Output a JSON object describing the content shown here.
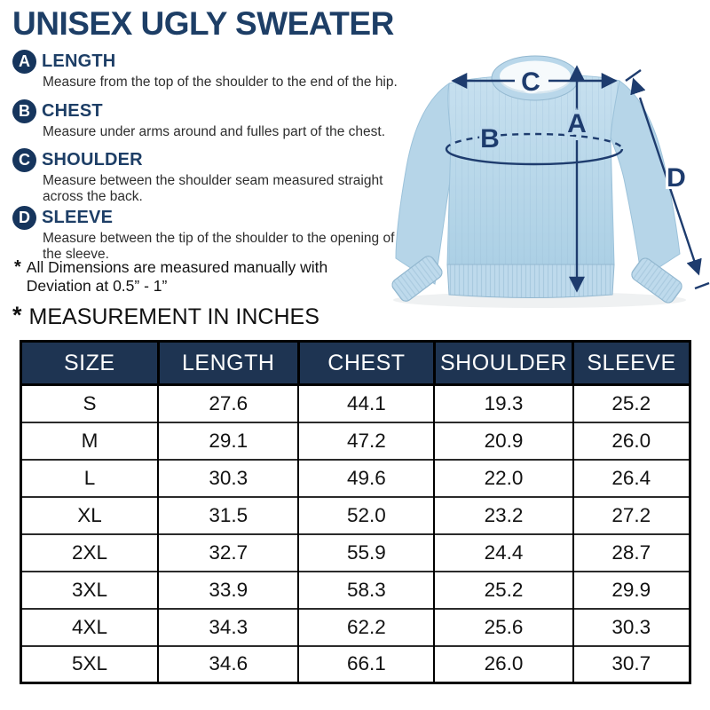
{
  "title": "UNISEX UGLY SWEATER",
  "sections": [
    {
      "letter": "A",
      "label": "LENGTH",
      "description": "Measure from the top of the shoulder to the end of the hip."
    },
    {
      "letter": "B",
      "label": "CHEST",
      "description": "Measure under arms around and fulles part of the chest."
    },
    {
      "letter": "C",
      "label": "SHOULDER",
      "description": "Measure between the shoulder seam measured straight across the back."
    },
    {
      "letter": "D",
      "label": "SLEEVE",
      "description": "Measure between the tip of the shoulder to the opening of the sleeve."
    }
  ],
  "note": {
    "marker": "*",
    "line1": "All Dimensions are measured manually with",
    "line2": "Deviation at 0.5” - 1”"
  },
  "table_heading": {
    "marker": "*",
    "text": "MEASUREMENT IN INCHES"
  },
  "diagram": {
    "labels": {
      "a": "A",
      "b": "B",
      "c": "C",
      "d": "D"
    }
  },
  "table": {
    "headers": [
      "SIZE",
      "LENGTH",
      "CHEST",
      "SHOULDER",
      "SLEEVE"
    ],
    "rows": [
      [
        "S",
        "27.6",
        "44.1",
        "19.3",
        "25.2"
      ],
      [
        "M",
        "29.1",
        "47.2",
        "20.9",
        "26.0"
      ],
      [
        "L",
        "30.3",
        "49.6",
        "22.0",
        "26.4"
      ],
      [
        "XL",
        "31.5",
        "52.0",
        "23.2",
        "27.2"
      ],
      [
        "2XL",
        "32.7",
        "55.9",
        "24.4",
        "28.7"
      ],
      [
        "3XL",
        "33.9",
        "58.3",
        "25.2",
        "29.9"
      ],
      [
        "4XL",
        "34.3",
        "62.2",
        "25.6",
        "30.3"
      ],
      [
        "5XL",
        "34.6",
        "66.1",
        "26.0",
        "30.7"
      ]
    ]
  },
  "colors": {
    "navy": "#1d3e66",
    "badge_navy": "#16355d",
    "table_header_bg": "#1e3452",
    "table_border": "#000000",
    "arrow_navy": "#1e3c6e",
    "sweater_light": "#c6dfee",
    "sweater_mid": "#aed2e6",
    "sweater_rib": "#bedaec"
  }
}
